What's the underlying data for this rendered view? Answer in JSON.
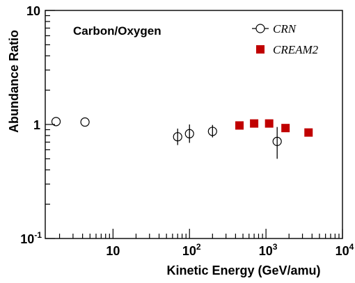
{
  "chart_data": {
    "type": "scatter",
    "title": "Carbon/Oxygen",
    "xlabel": "Kinetic Energy (GeV/amu)",
    "ylabel": "Abundance Ratio",
    "xscale": "log",
    "yscale": "log",
    "xlim": [
      1.3,
      10000
    ],
    "ylim": [
      0.1,
      10
    ],
    "grid": false,
    "legend_position": "top-right",
    "x_ticks": [
      {
        "value": 10,
        "base": "10",
        "exp": ""
      },
      {
        "value": 100,
        "base": "10",
        "exp": "2"
      },
      {
        "value": 1000,
        "base": "10",
        "exp": "3"
      },
      {
        "value": 10000,
        "base": "10",
        "exp": "4"
      }
    ],
    "y_ticks": [
      {
        "value": 0.1,
        "base": "10",
        "exp": "-1"
      },
      {
        "value": 1,
        "base": "1",
        "exp": ""
      },
      {
        "value": 10,
        "base": "10",
        "exp": ""
      }
    ],
    "series": [
      {
        "name": "CRN",
        "marker": "open-circle",
        "color": "#000000",
        "points": [
          {
            "x": 1.8,
            "y": 1.06,
            "err_lo": 0,
            "err_hi": 0
          },
          {
            "x": 4.3,
            "y": 1.05,
            "err_lo": 0,
            "err_hi": 0
          },
          {
            "x": 70,
            "y": 0.78,
            "err_lo": 0.12,
            "err_hi": 0.14
          },
          {
            "x": 100,
            "y": 0.83,
            "err_lo": 0.14,
            "err_hi": 0.17
          },
          {
            "x": 200,
            "y": 0.87,
            "err_lo": 0.1,
            "err_hi": 0.12
          },
          {
            "x": 1400,
            "y": 0.71,
            "err_lo": 0.21,
            "err_hi": 0.24
          }
        ]
      },
      {
        "name": "CREAM2",
        "marker": "filled-square",
        "color": "#c00000",
        "points": [
          {
            "x": 450,
            "y": 0.98
          },
          {
            "x": 700,
            "y": 1.02
          },
          {
            "x": 1100,
            "y": 1.02
          },
          {
            "x": 1800,
            "y": 0.93
          },
          {
            "x": 3600,
            "y": 0.85
          }
        ]
      }
    ]
  }
}
